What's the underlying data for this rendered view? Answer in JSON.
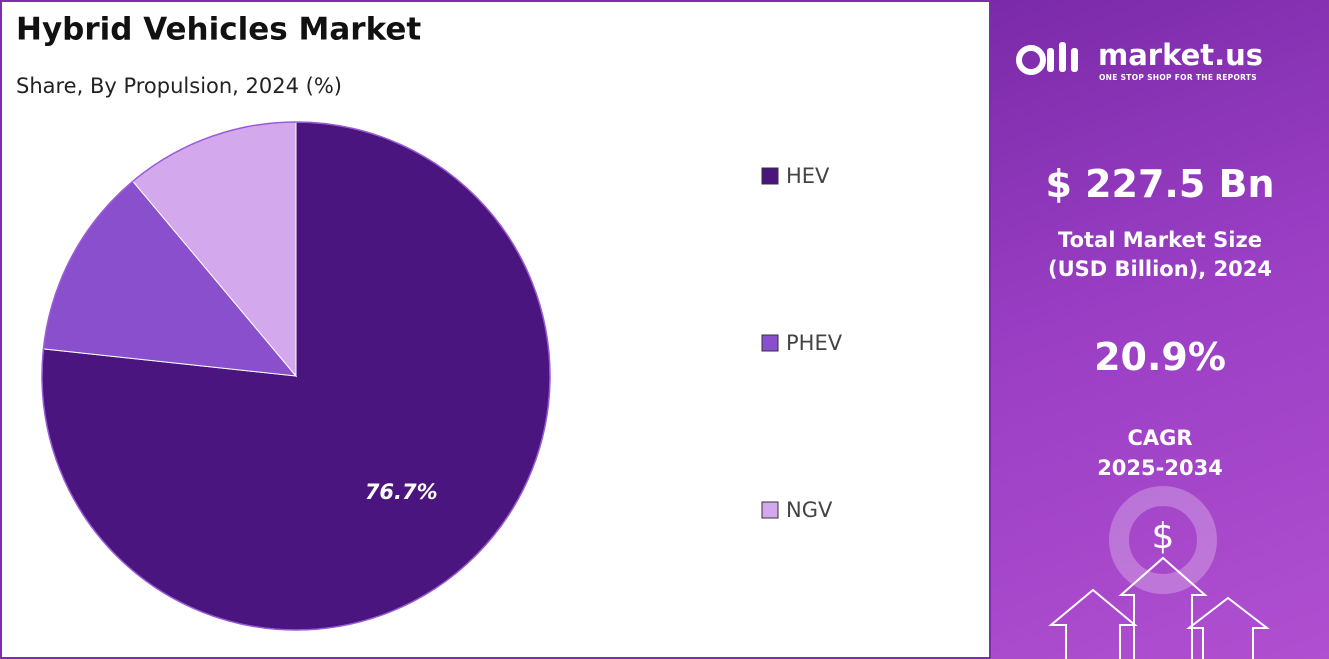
{
  "chart_data": {
    "type": "pie",
    "title": "Hybrid Vehicles Market",
    "subtitle": "Share, By Propulsion, 2024 (%)",
    "categories": [
      "HEV",
      "PHEV",
      "NGV"
    ],
    "values": [
      76.7,
      12.2,
      11.1
    ],
    "value_labels": [
      "76.7%",
      null,
      null
    ],
    "colors": [
      "#4b1580",
      "#8a4fcc",
      "#d4a8ec"
    ],
    "legend": "right"
  },
  "panel": {
    "brand": "market.us",
    "tagline": "ONE STOP SHOP FOR THE REPORTS",
    "market_size": "$ 227.5 Bn",
    "market_size_label": [
      "Total Market Size",
      "(USD Billion), 2024"
    ],
    "cagr": "20.9%",
    "cagr_label": [
      "CAGR",
      "2025-2034"
    ]
  }
}
